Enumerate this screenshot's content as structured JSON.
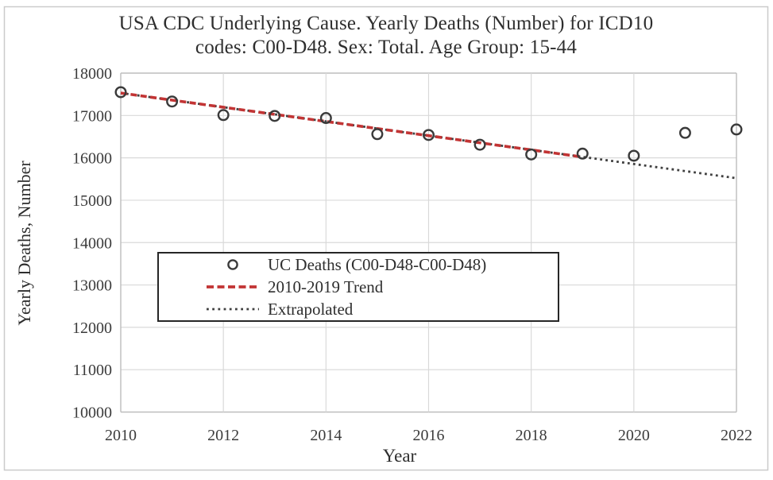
{
  "figure": {
    "title_line1": "USA CDC Underlying Cause. Yearly Deaths (Number) for ICD10",
    "title_line2": "codes: C00-D48. Sex: Total. Age Group: 15-44"
  },
  "chart_data": {
    "type": "scatter",
    "title": "USA CDC Underlying Cause. Yearly Deaths (Number) for ICD10 codes: C00-D48. Sex: Total. Age Group: 15-44",
    "xlabel": "Year",
    "ylabel": "Yearly Deaths, Number",
    "xlim": [
      2010,
      2022
    ],
    "ylim": [
      10000,
      18000
    ],
    "x_ticks": [
      2010,
      2012,
      2014,
      2016,
      2018,
      2020,
      2022
    ],
    "y_ticks": [
      10000,
      11000,
      12000,
      13000,
      14000,
      15000,
      16000,
      17000,
      18000
    ],
    "grid": true,
    "legend_position": "inside-center-left",
    "series": [
      {
        "name": "UC Deaths (C00-D48-C00-D48)",
        "type": "scatter",
        "marker": "open-circle",
        "color": "#3a3a3a",
        "x": [
          2010,
          2011,
          2012,
          2013,
          2014,
          2015,
          2016,
          2017,
          2018,
          2019,
          2020,
          2021,
          2022
        ],
        "y": [
          17550,
          17330,
          17010,
          16990,
          16940,
          16560,
          16540,
          16310,
          16080,
          16100,
          16050,
          16590,
          16670
        ]
      },
      {
        "name": "2010-2019 Trend",
        "type": "line",
        "style": "dashed",
        "color": "#c23434",
        "x": [
          2010,
          2019
        ],
        "y": [
          17530,
          16020
        ]
      },
      {
        "name": "Extrapolated",
        "type": "line",
        "style": "dotted",
        "color": "#404040",
        "x": [
          2010,
          2022
        ],
        "y": [
          17530,
          15520
        ]
      }
    ]
  },
  "colors": {
    "figure_border": "#cbcbcb",
    "plot_border": "#bdbdbd",
    "gridline": "#d9d9d9",
    "tick_text": "#3b3b3b",
    "title_text": "#2e2e2e",
    "trend_red": "#c23434",
    "dotted_black": "#404040",
    "marker_stroke": "#3a3a3a",
    "legend_border": "#262626",
    "background": "#ffffff"
  }
}
